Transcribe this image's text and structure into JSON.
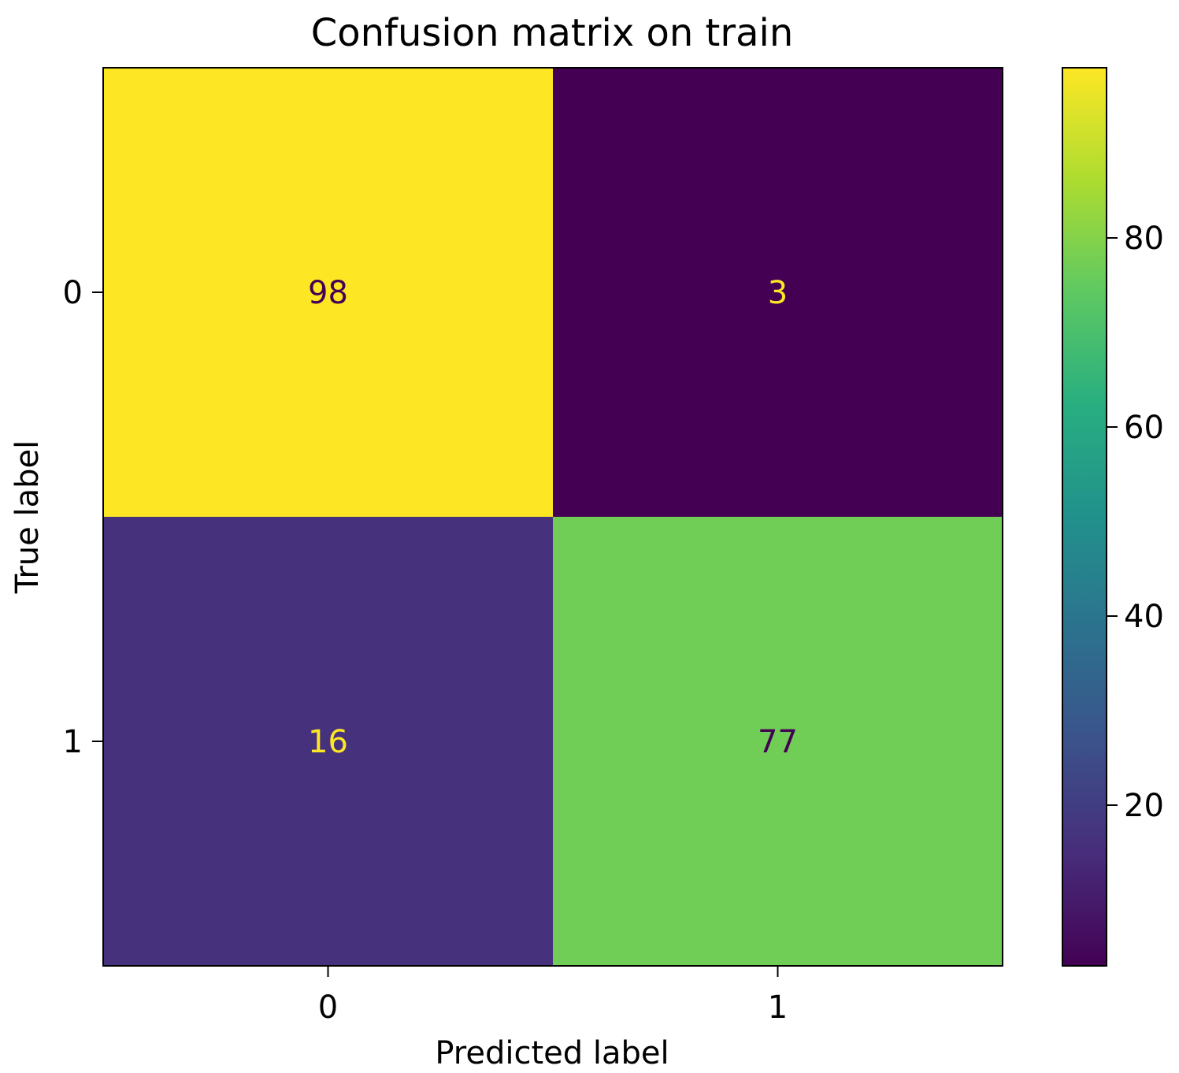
{
  "chart_data": {
    "type": "heatmap",
    "title": "Confusion matrix on train",
    "xlabel": "Predicted label",
    "ylabel": "True label",
    "x_categories": [
      "0",
      "1"
    ],
    "y_categories": [
      "0",
      "1"
    ],
    "values": [
      [
        98,
        3
      ],
      [
        16,
        77
      ]
    ],
    "colormap": "viridis",
    "colorbar": {
      "range": [
        3,
        98
      ],
      "ticks": [
        20,
        40,
        60,
        80
      ],
      "tick_labels": [
        "20",
        "40",
        "60",
        "80"
      ]
    },
    "text_colors": {
      "on_dark": "#fde725",
      "on_light": "#440154"
    }
  }
}
